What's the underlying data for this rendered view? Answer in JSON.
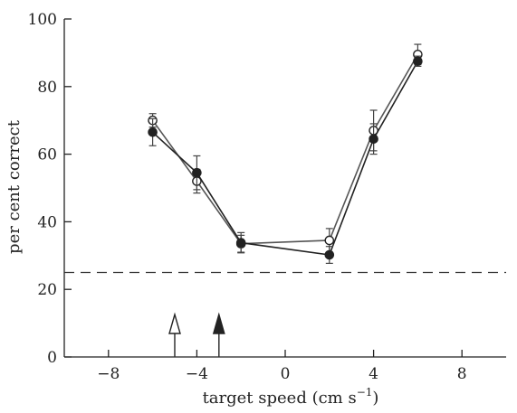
{
  "chart_data": {
    "type": "line",
    "xlabel": "target speed (cm s",
    "xlabel_superscript": "−1",
    "xlabel_close": ")",
    "ylabel": "per cent correct",
    "xlim": [
      -10,
      10
    ],
    "ylim": [
      0,
      100
    ],
    "x_ticks": [
      -8,
      -4,
      0,
      4,
      8
    ],
    "x_tick_labels": [
      "−8",
      "−4",
      "0",
      "4",
      "8"
    ],
    "y_ticks": [
      0,
      20,
      40,
      60,
      80,
      100
    ],
    "y_tick_labels": [
      "0",
      "20",
      "40",
      "60",
      "80",
      "100"
    ],
    "grid": false,
    "chance_level": 25,
    "arrows": [
      {
        "x": -5,
        "style": "open"
      },
      {
        "x": -3,
        "style": "filled"
      }
    ],
    "series": [
      {
        "marker": "open-circle",
        "points": [
          {
            "x": -6,
            "y": 70,
            "err": 2
          },
          {
            "x": -4,
            "y": 52,
            "err": 3.5
          },
          {
            "x": -2,
            "y": 33.5,
            "err": 2.5
          },
          {
            "x": 2,
            "y": 34.5,
            "err": 3.5
          },
          {
            "x": 4,
            "y": 67,
            "err": 6
          },
          {
            "x": 6,
            "y": 89.5,
            "err": 3
          }
        ]
      },
      {
        "marker": "filled-circle",
        "points": [
          {
            "x": -6,
            "y": 66.5,
            "err": 4
          },
          {
            "x": -4,
            "y": 54.5,
            "err": 5
          },
          {
            "x": -2,
            "y": 33.8,
            "err": 3
          },
          {
            "x": 2,
            "y": 30.2,
            "err": 2.5
          },
          {
            "x": 4,
            "y": 64.5,
            "err": 4.5
          },
          {
            "x": 6,
            "y": 87.5,
            "err": 1.5
          }
        ]
      }
    ]
  }
}
